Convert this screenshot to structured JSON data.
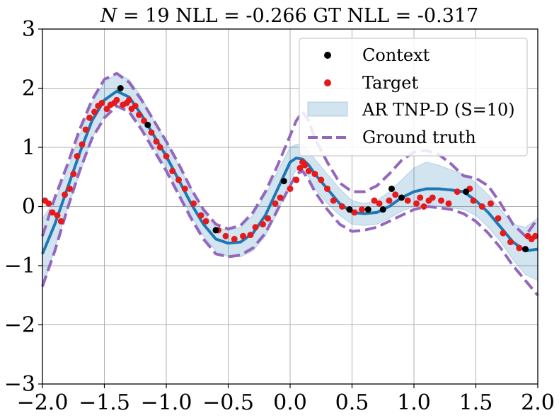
{
  "chart_data": {
    "type": "line",
    "title": {
      "n_label": "N",
      "n_eq": " = 19 NLL = -0.266 GT NLL = -0.317"
    },
    "xlabel": "",
    "ylabel": "",
    "xlim": [
      -2.0,
      2.0
    ],
    "ylim": [
      -3,
      3
    ],
    "x_ticks": [
      -2.0,
      -1.5,
      -1.0,
      -0.5,
      0.0,
      0.5,
      1.0,
      1.5,
      2.0
    ],
    "x_tick_labels": [
      "−2.0",
      "−1.5",
      "−1.0",
      "−0.5",
      "0.0",
      "0.5",
      "1.0",
      "1.5",
      "2.0"
    ],
    "y_ticks": [
      -3,
      -2,
      -1,
      0,
      1,
      2,
      3
    ],
    "y_tick_labels": [
      "−3",
      "−2",
      "−1",
      "0",
      "1",
      "2",
      "3"
    ],
    "grid": true,
    "legend": {
      "placement": "top-right",
      "entries": [
        {
          "label": "Context",
          "kind": "marker",
          "color": "#000000"
        },
        {
          "label": "Target",
          "kind": "marker",
          "color": "#e41a1c"
        },
        {
          "label": "AR TNP-D (S=10)",
          "kind": "band",
          "color": "#1f77b4"
        },
        {
          "label": "Ground truth",
          "kind": "dashed",
          "color": "#9467bd"
        }
      ]
    },
    "series": [
      {
        "name": "AR TNP-D (S=10)",
        "color": "#1f77b4",
        "x": [
          -2.0,
          -1.9,
          -1.8,
          -1.7,
          -1.6,
          -1.5,
          -1.4,
          -1.3,
          -1.2,
          -1.1,
          -1.0,
          -0.9,
          -0.8,
          -0.7,
          -0.6,
          -0.5,
          -0.4,
          -0.3,
          -0.2,
          -0.1,
          0.0,
          0.05,
          0.1,
          0.15,
          0.2,
          0.3,
          0.4,
          0.5,
          0.6,
          0.7,
          0.8,
          0.9,
          1.0,
          1.1,
          1.2,
          1.3,
          1.4,
          1.5,
          1.6,
          1.7,
          1.8,
          1.9,
          2.0
        ],
        "mean": [
          -0.8,
          -0.3,
          0.3,
          0.9,
          1.45,
          1.8,
          1.95,
          1.85,
          1.55,
          1.2,
          0.85,
          0.45,
          0.05,
          -0.3,
          -0.55,
          -0.62,
          -0.6,
          -0.45,
          -0.15,
          0.3,
          0.75,
          0.82,
          0.8,
          0.7,
          0.55,
          0.3,
          0.05,
          -0.1,
          -0.12,
          -0.1,
          0.0,
          0.15,
          0.25,
          0.3,
          0.3,
          0.28,
          0.25,
          0.1,
          -0.1,
          -0.35,
          -0.6,
          -0.75,
          -0.72
        ],
        "lower": [
          -1.4,
          -0.7,
          -0.05,
          0.55,
          1.15,
          1.55,
          1.75,
          1.65,
          1.35,
          1.0,
          0.65,
          0.25,
          -0.15,
          -0.5,
          -0.75,
          -0.85,
          -0.85,
          -0.75,
          -0.5,
          -0.1,
          0.45,
          0.62,
          0.6,
          0.5,
          0.3,
          0.05,
          -0.15,
          -0.3,
          -0.32,
          -0.3,
          -0.2,
          -0.08,
          0.0,
          0.02,
          0.0,
          -0.02,
          -0.05,
          -0.15,
          -0.35,
          -0.6,
          -0.9,
          -1.15,
          -1.25
        ],
        "upper": [
          -0.2,
          0.1,
          0.6,
          1.2,
          1.75,
          2.1,
          2.25,
          2.15,
          1.85,
          1.45,
          1.1,
          0.7,
          0.3,
          -0.1,
          -0.35,
          -0.4,
          -0.35,
          -0.15,
          0.2,
          0.6,
          1.0,
          1.05,
          1.05,
          0.95,
          0.8,
          0.55,
          0.3,
          0.1,
          0.05,
          0.1,
          0.25,
          0.45,
          0.65,
          0.75,
          0.7,
          0.62,
          0.55,
          0.4,
          0.2,
          -0.05,
          -0.3,
          -0.35,
          -0.2
        ]
      },
      {
        "name": "Ground truth",
        "color": "#9467bd",
        "x": [
          -2.0,
          -1.9,
          -1.8,
          -1.7,
          -1.6,
          -1.5,
          -1.4,
          -1.3,
          -1.2,
          -1.1,
          -1.0,
          -0.9,
          -0.8,
          -0.7,
          -0.6,
          -0.5,
          -0.4,
          -0.3,
          -0.2,
          -0.1,
          0.0,
          0.05,
          0.1,
          0.15,
          0.2,
          0.3,
          0.4,
          0.5,
          0.6,
          0.7,
          0.8,
          0.9,
          1.0,
          1.1,
          1.2,
          1.3,
          1.4,
          1.5,
          1.6,
          1.7,
          1.8,
          1.9,
          2.0
        ],
        "lower": [
          -1.35,
          -0.75,
          -0.05,
          0.6,
          1.15,
          1.5,
          1.7,
          1.6,
          1.3,
          0.95,
          0.6,
          0.2,
          -0.2,
          -0.55,
          -0.8,
          -0.85,
          -0.82,
          -0.7,
          -0.45,
          -0.05,
          0.35,
          0.55,
          0.6,
          0.45,
          0.25,
          -0.05,
          -0.3,
          -0.42,
          -0.4,
          -0.35,
          -0.25,
          -0.15,
          -0.05,
          0.0,
          -0.02,
          -0.05,
          -0.12,
          -0.25,
          -0.45,
          -0.7,
          -1.0,
          -1.25,
          -1.5
        ],
        "upper": [
          -0.5,
          0.15,
          0.7,
          1.3,
          1.8,
          2.15,
          2.25,
          2.1,
          1.8,
          1.45,
          1.1,
          0.72,
          0.3,
          -0.05,
          -0.3,
          -0.38,
          -0.32,
          -0.1,
          0.25,
          0.7,
          1.2,
          1.45,
          1.6,
          1.45,
          1.15,
          0.75,
          0.4,
          0.25,
          0.25,
          0.35,
          0.55,
          0.78,
          0.92,
          0.95,
          0.88,
          0.72,
          0.52,
          0.48,
          0.35,
          0.05,
          -0.3,
          -0.5,
          -0.2
        ]
      }
    ],
    "context_points": {
      "x": [
        -1.37,
        -1.15,
        -0.6,
        -0.05,
        0.48,
        0.63,
        0.75,
        0.82,
        0.9,
        1.42,
        1.9
      ],
      "y": [
        2.0,
        1.38,
        -0.4,
        0.43,
        -0.05,
        -0.05,
        -0.05,
        0.3,
        0.15,
        0.25,
        -0.72
      ]
    },
    "target_points": {
      "x": [
        -1.98,
        -1.95,
        -1.92,
        -1.88,
        -1.85,
        -1.82,
        -1.78,
        -1.75,
        -1.72,
        -1.68,
        -1.65,
        -1.62,
        -1.58,
        -1.55,
        -1.52,
        -1.48,
        -1.45,
        -1.42,
        -1.4,
        -1.35,
        -1.32,
        -1.3,
        -1.28,
        -1.25,
        -1.22,
        -1.18,
        -1.12,
        -1.08,
        -1.05,
        -1.0,
        -0.95,
        -0.9,
        -0.85,
        -0.78,
        -0.72,
        -0.68,
        -0.58,
        -0.52,
        -0.45,
        -0.38,
        -0.32,
        -0.28,
        -0.22,
        -0.18,
        -0.12,
        -0.08,
        0.0,
        0.05,
        0.08,
        0.1,
        0.12,
        0.15,
        0.2,
        0.25,
        0.3,
        0.35,
        0.42,
        0.52,
        0.58,
        0.68,
        0.72,
        0.8,
        0.85,
        0.95,
        1.02,
        1.05,
        1.08,
        1.12,
        1.15,
        1.22,
        1.28,
        1.35,
        1.45,
        1.48,
        1.55,
        1.62,
        1.68,
        1.72,
        1.78,
        1.85,
        1.92,
        1.95,
        1.98
      ],
      "y": [
        0.1,
        0.05,
        -0.1,
        -0.15,
        -0.25,
        0.2,
        0.3,
        0.55,
        0.85,
        1.05,
        1.3,
        1.5,
        1.6,
        1.7,
        1.75,
        1.65,
        1.72,
        1.75,
        1.8,
        1.72,
        1.75,
        1.8,
        1.65,
        1.7,
        1.55,
        1.45,
        1.25,
        1.1,
        1.0,
        0.85,
        0.6,
        0.45,
        0.3,
        0.05,
        -0.15,
        -0.25,
        -0.4,
        -0.5,
        -0.55,
        -0.5,
        -0.48,
        -0.35,
        -0.3,
        -0.2,
        0.05,
        0.15,
        0.3,
        0.45,
        0.65,
        0.75,
        0.7,
        0.6,
        0.55,
        0.45,
        0.3,
        0.1,
        0.0,
        -0.1,
        -0.05,
        0.1,
        0.05,
        0.1,
        0.2,
        0.1,
        0.05,
        0.15,
        0.0,
        0.1,
        0.15,
        0.1,
        0.05,
        0.25,
        0.3,
        0.1,
        0.0,
        0.05,
        -0.2,
        -0.45,
        -0.6,
        -0.7,
        -0.5,
        -0.55,
        -0.5
      ]
    }
  }
}
